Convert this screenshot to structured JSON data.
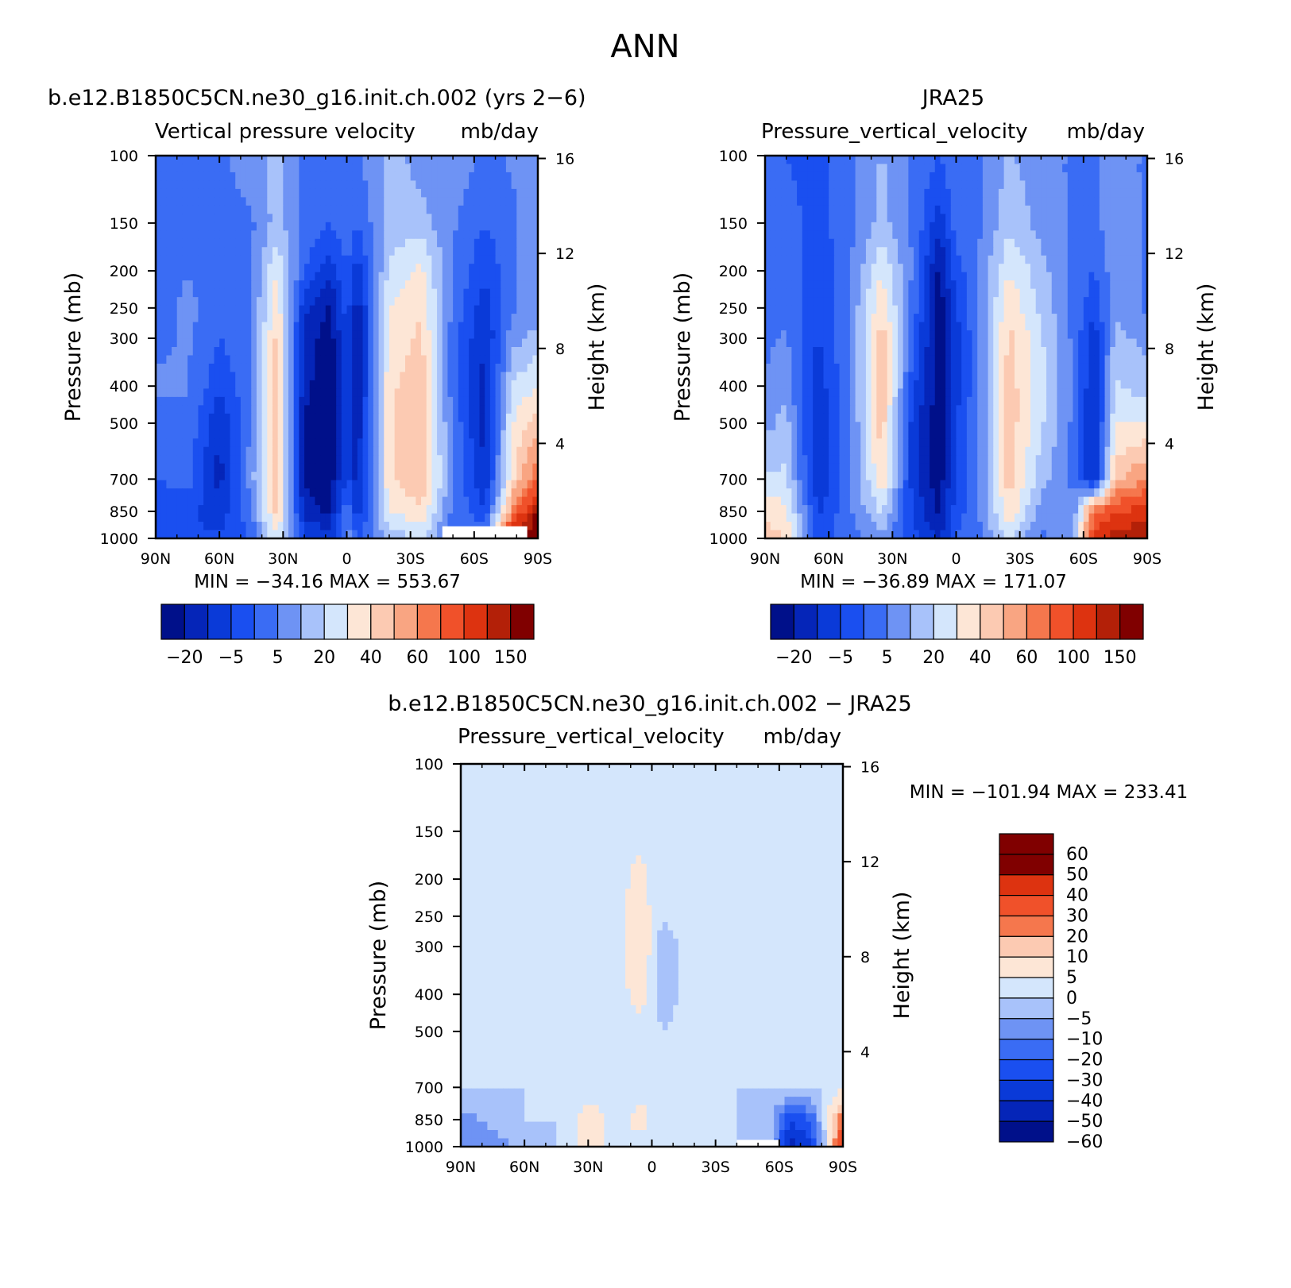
{
  "figure": {
    "season": "ANN",
    "units": "mb/day"
  },
  "palette": {
    "full16": [
      "#00108a",
      "#0525b8",
      "#0a3ad8",
      "#1a4ff0",
      "#3a6cf4",
      "#6e93f4",
      "#a8c2fa",
      "#d4e6fc",
      "#fde6d6",
      "#fccab2",
      "#f9a582",
      "#f5774d",
      "#f0512a",
      "#dd3310",
      "#b32008",
      "#800000"
    ],
    "diff14": [
      "#00108a",
      "#0525b8",
      "#0a3ad8",
      "#1a4ff0",
      "#3a6cf4",
      "#6e93f4",
      "#a8c2fa",
      "#d4e6fc",
      "#fde6d6",
      "#fccab2",
      "#f5774d",
      "#f0512a",
      "#dd3310",
      "#800000"
    ]
  },
  "chart_data": [
    {
      "type": "heatmap",
      "panel_title": "b.e12.B1850C5CN.ne30_g16.init.ch.002 (yrs 2−6)",
      "variable_label": "Vertical pressure velocity",
      "units_label": "mb/day",
      "ylabel": "Pressure (mb)",
      "y2label": "Height (km)",
      "xticks": [
        "90N",
        "60N",
        "30N",
        "0",
        "30S",
        "60S",
        "90S"
      ],
      "yticks": [
        100,
        150,
        200,
        250,
        300,
        400,
        500,
        700,
        850,
        1000
      ],
      "y2ticks": [
        16,
        12,
        8,
        4
      ],
      "ylim": [
        1000,
        100
      ],
      "log_scale_y": true,
      "min": -34.16,
      "max": 553.67,
      "stats_text": "MIN = −34.16   MAX = 553.67",
      "colorbar_labels": [
        "−20",
        "−5",
        "5",
        "20",
        "40",
        "60",
        "100",
        "150"
      ],
      "colorbar_orientation": "horizontal",
      "field_columns": [
        {
          "lat": 90,
          "values": [
            0.25,
            0.25,
            0.25,
            0.25,
            0.3,
            0.32,
            0.3,
            0.25,
            0.2,
            0.2
          ]
        },
        {
          "lat": 75,
          "values": [
            0.25,
            0.28,
            0.3,
            0.35,
            0.32,
            0.32,
            0.3,
            0.28,
            0.2,
            0.2
          ]
        },
        {
          "lat": 60,
          "values": [
            0.3,
            0.28,
            0.25,
            0.25,
            0.25,
            0.2,
            0.12,
            0.1,
            0.15,
            0.2
          ]
        },
        {
          "lat": 45,
          "values": [
            0.35,
            0.3,
            0.3,
            0.3,
            0.3,
            0.3,
            0.32,
            0.35,
            0.3,
            0.25
          ]
        },
        {
          "lat": 33,
          "values": [
            0.4,
            0.4,
            0.5,
            0.55,
            0.58,
            0.6,
            0.6,
            0.62,
            0.6,
            0.5
          ]
        },
        {
          "lat": 20,
          "values": [
            0.3,
            0.3,
            0.25,
            0.15,
            0.1,
            0.08,
            0.05,
            0.05,
            0.1,
            0.2
          ]
        },
        {
          "lat": 8,
          "values": [
            0.3,
            0.25,
            0.15,
            0.05,
            0.02,
            0.02,
            0.02,
            0.02,
            0.05,
            0.15
          ]
        },
        {
          "lat": 0,
          "values": [
            0.3,
            0.3,
            0.25,
            0.22,
            0.2,
            0.2,
            0.2,
            0.2,
            0.3,
            0.35
          ]
        },
        {
          "lat": -5,
          "values": [
            0.3,
            0.25,
            0.15,
            0.08,
            0.06,
            0.06,
            0.08,
            0.1,
            0.15,
            0.25
          ]
        },
        {
          "lat": -20,
          "values": [
            0.4,
            0.4,
            0.45,
            0.5,
            0.52,
            0.55,
            0.55,
            0.55,
            0.5,
            0.4
          ]
        },
        {
          "lat": -35,
          "values": [
            0.35,
            0.4,
            0.52,
            0.55,
            0.58,
            0.6,
            0.6,
            0.62,
            0.55,
            0.45
          ]
        },
        {
          "lat": -50,
          "values": [
            0.35,
            0.32,
            0.3,
            0.3,
            0.28,
            0.28,
            0.3,
            0.32,
            0.3,
            0.25
          ]
        },
        {
          "lat": -65,
          "values": [
            0.3,
            0.25,
            0.2,
            0.15,
            0.12,
            0.1,
            0.1,
            0.12,
            0.2,
            0.3
          ]
        },
        {
          "lat": -78,
          "values": [
            0.32,
            0.3,
            0.3,
            0.3,
            0.35,
            0.45,
            0.5,
            0.55,
            0.7,
            0.95
          ]
        },
        {
          "lat": -90,
          "values": [
            0.35,
            0.35,
            0.35,
            0.35,
            0.4,
            0.5,
            0.6,
            0.75,
            0.95,
            1.0
          ]
        }
      ],
      "mask": {
        "lat_from": -45,
        "lat_to": -85,
        "p_from": 930,
        "p_to": 1000
      }
    },
    {
      "type": "heatmap",
      "panel_title": "JRA25",
      "variable_label": "Pressure_vertical_velocity",
      "units_label": "mb/day",
      "ylabel": "Pressure (mb)",
      "y2label": "Height (km)",
      "xticks": [
        "90N",
        "60N",
        "30N",
        "0",
        "30S",
        "60S",
        "90S"
      ],
      "yticks": [
        100,
        150,
        200,
        250,
        300,
        400,
        500,
        700,
        850,
        1000
      ],
      "y2ticks": [
        16,
        12,
        8,
        4
      ],
      "ylim": [
        1000,
        100
      ],
      "log_scale_y": true,
      "min": -36.89,
      "max": 171.07,
      "stats_text": "MIN = −36.89   MAX = 171.07",
      "colorbar_labels": [
        "−20",
        "−5",
        "5",
        "20",
        "40",
        "60",
        "100",
        "150"
      ],
      "colorbar_orientation": "horizontal",
      "field_columns": [
        {
          "lat": 90,
          "values": [
            0.25,
            0.25,
            0.25,
            0.25,
            0.3,
            0.32,
            0.35,
            0.45,
            0.55,
            0.6
          ]
        },
        {
          "lat": 80,
          "values": [
            0.25,
            0.28,
            0.3,
            0.3,
            0.32,
            0.35,
            0.4,
            0.45,
            0.52,
            0.55
          ]
        },
        {
          "lat": 65,
          "values": [
            0.22,
            0.22,
            0.2,
            0.2,
            0.18,
            0.15,
            0.12,
            0.12,
            0.18,
            0.22
          ]
        },
        {
          "lat": 50,
          "values": [
            0.3,
            0.3,
            0.3,
            0.32,
            0.32,
            0.3,
            0.3,
            0.3,
            0.3,
            0.28
          ]
        },
        {
          "lat": 35,
          "values": [
            0.38,
            0.4,
            0.5,
            0.55,
            0.6,
            0.62,
            0.6,
            0.55,
            0.45,
            0.35
          ]
        },
        {
          "lat": 20,
          "values": [
            0.3,
            0.3,
            0.3,
            0.28,
            0.25,
            0.2,
            0.15,
            0.15,
            0.18,
            0.2
          ]
        },
        {
          "lat": 8,
          "values": [
            0.25,
            0.15,
            0.05,
            0.02,
            0.02,
            0.02,
            0.02,
            0.02,
            0.05,
            0.12
          ]
        },
        {
          "lat": 0,
          "values": [
            0.3,
            0.28,
            0.22,
            0.18,
            0.16,
            0.16,
            0.18,
            0.2,
            0.22,
            0.25
          ]
        },
        {
          "lat": -10,
          "values": [
            0.3,
            0.3,
            0.3,
            0.3,
            0.3,
            0.3,
            0.3,
            0.3,
            0.3,
            0.28
          ]
        },
        {
          "lat": -25,
          "values": [
            0.38,
            0.42,
            0.5,
            0.55,
            0.58,
            0.6,
            0.6,
            0.6,
            0.55,
            0.45
          ]
        },
        {
          "lat": -40,
          "values": [
            0.35,
            0.35,
            0.4,
            0.42,
            0.45,
            0.45,
            0.45,
            0.4,
            0.35,
            0.3
          ]
        },
        {
          "lat": -55,
          "values": [
            0.3,
            0.3,
            0.3,
            0.3,
            0.3,
            0.3,
            0.3,
            0.3,
            0.32,
            0.35
          ]
        },
        {
          "lat": -65,
          "values": [
            0.3,
            0.3,
            0.25,
            0.2,
            0.15,
            0.12,
            0.1,
            0.12,
            0.75,
            0.85
          ]
        },
        {
          "lat": -75,
          "values": [
            0.35,
            0.35,
            0.35,
            0.35,
            0.4,
            0.45,
            0.5,
            0.6,
            0.8,
            0.9
          ]
        },
        {
          "lat": -90,
          "values": [
            0.3,
            0.3,
            0.3,
            0.3,
            0.35,
            0.4,
            0.5,
            0.7,
            0.85,
            0.95
          ]
        }
      ]
    },
    {
      "type": "heatmap",
      "panel_title": "b.e12.B1850C5CN.ne30_g16.init.ch.002 − JRA25",
      "variable_label": "Pressure_vertical_velocity",
      "units_label": "mb/day",
      "ylabel": "Pressure (mb)",
      "y2label": "Height (km)",
      "xticks": [
        "90N",
        "60N",
        "30N",
        "0",
        "30S",
        "60S",
        "90S"
      ],
      "yticks": [
        100,
        150,
        200,
        250,
        300,
        400,
        500,
        700,
        850,
        1000
      ],
      "y2ticks": [
        16,
        12,
        8,
        4
      ],
      "ylim": [
        1000,
        100
      ],
      "log_scale_y": true,
      "min": -101.94,
      "max": 233.41,
      "stats_text": "MIN = −101.94   MAX = 233.41",
      "colorbar_labels": [
        "60",
        "50",
        "40",
        "30",
        "20",
        "10",
        "5",
        "0",
        "−5",
        "−10",
        "−20",
        "−30",
        "−40",
        "−50",
        "−60"
      ],
      "colorbar_orientation": "vertical",
      "field_columns": [
        {
          "lat": 90,
          "values": [
            0.5,
            0.5,
            0.5,
            0.5,
            0.5,
            0.5,
            0.5,
            0.5,
            0.4,
            0.35
          ]
        },
        {
          "lat": 75,
          "values": [
            0.5,
            0.55,
            0.55,
            0.55,
            0.55,
            0.55,
            0.55,
            0.5,
            0.45,
            0.4
          ]
        },
        {
          "lat": 60,
          "values": [
            0.5,
            0.5,
            0.5,
            0.5,
            0.5,
            0.5,
            0.5,
            0.5,
            0.5,
            0.45
          ]
        },
        {
          "lat": 45,
          "values": [
            0.5,
            0.5,
            0.5,
            0.5,
            0.5,
            0.5,
            0.5,
            0.5,
            0.5,
            0.5
          ]
        },
        {
          "lat": 30,
          "values": [
            0.5,
            0.55,
            0.55,
            0.55,
            0.55,
            0.55,
            0.55,
            0.55,
            0.6,
            0.6
          ]
        },
        {
          "lat": 15,
          "values": [
            0.55,
            0.55,
            0.55,
            0.55,
            0.55,
            0.55,
            0.55,
            0.55,
            0.55,
            0.55
          ]
        },
        {
          "lat": 5,
          "values": [
            0.55,
            0.55,
            0.6,
            0.62,
            0.65,
            0.6,
            0.55,
            0.55,
            0.6,
            0.55
          ]
        },
        {
          "lat": -5,
          "values": [
            0.5,
            0.5,
            0.5,
            0.5,
            0.45,
            0.45,
            0.5,
            0.5,
            0.5,
            0.5
          ]
        },
        {
          "lat": -20,
          "values": [
            0.55,
            0.55,
            0.55,
            0.55,
            0.55,
            0.55,
            0.55,
            0.55,
            0.55,
            0.5
          ]
        },
        {
          "lat": -40,
          "values": [
            0.5,
            0.5,
            0.5,
            0.5,
            0.5,
            0.5,
            0.5,
            0.5,
            0.5,
            0.5
          ]
        },
        {
          "lat": -55,
          "values": [
            0.5,
            0.5,
            0.5,
            0.5,
            0.5,
            0.5,
            0.5,
            0.5,
            0.48,
            0.5
          ]
        },
        {
          "lat": -65,
          "values": [
            0.5,
            0.5,
            0.5,
            0.5,
            0.5,
            0.5,
            0.5,
            0.55,
            0.2,
            0.1
          ]
        },
        {
          "lat": -75,
          "values": [
            0.55,
            0.55,
            0.55,
            0.55,
            0.55,
            0.5,
            0.5,
            0.5,
            0.3,
            0.2
          ]
        },
        {
          "lat": -90,
          "values": [
            0.5,
            0.55,
            0.55,
            0.55,
            0.55,
            0.55,
            0.55,
            0.55,
            0.8,
            0.9
          ]
        }
      ],
      "mask": {
        "lat_from": -40,
        "lat_to": -60,
        "p_from": 960,
        "p_to": 1000
      }
    }
  ]
}
